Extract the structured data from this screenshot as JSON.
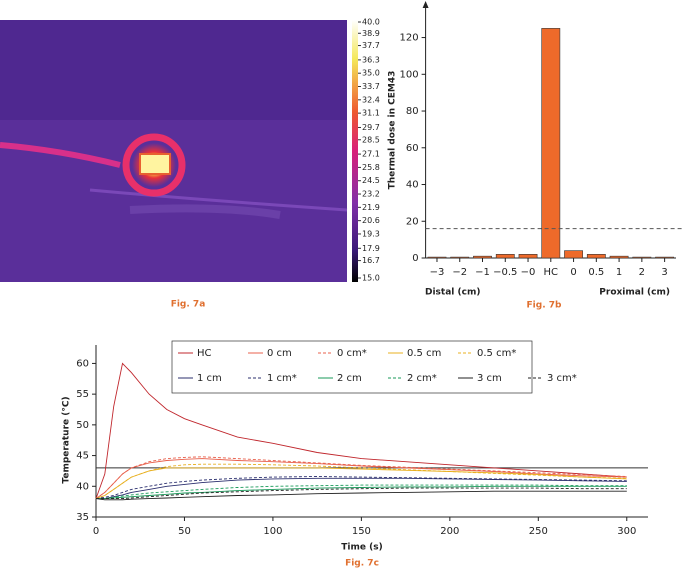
{
  "chart_data": [
    {
      "type": "thermal-image",
      "caption": "Fig. 7a",
      "clim": [
        15,
        40
      ],
      "colorbar_ticks": [
        {
          "value": 40,
          "label": "40.0"
        },
        38.9,
        37.7,
        36.3,
        {
          "value": 35,
          "label": "35.0"
        },
        33.7,
        32.4,
        31.1,
        29.7,
        28.5,
        27.1,
        25.8,
        24.5,
        23.2,
        21.9,
        20.6,
        19.3,
        17.9,
        16.7,
        {
          "value": 15,
          "label": "15.0"
        }
      ]
    },
    {
      "type": "bar",
      "caption": "Fig. 7b",
      "y_label": "Thermal dose in CEM43",
      "x_label_left": "Distal (cm)",
      "x_label_right": "Proximal (cm)",
      "categories": [
        "−3",
        "−2",
        "−1",
        "−0.5",
        "−0",
        "HC",
        "0",
        "0.5",
        "1",
        "2",
        "3"
      ],
      "values": [
        0.5,
        0.5,
        1,
        2,
        2,
        125,
        4,
        2,
        1,
        0.5,
        0.5
      ],
      "color": "#ee6a2a",
      "ylim": [
        0,
        135
      ],
      "yticks": [
        0,
        20,
        40,
        60,
        80,
        100,
        120
      ],
      "reference_line": 16
    },
    {
      "type": "line",
      "caption": "Fig. 7c",
      "x_label": "Time (s)",
      "y_label": "Temperature (°C)",
      "x": [
        0,
        5,
        10,
        15,
        20,
        30,
        40,
        50,
        60,
        80,
        100,
        125,
        150,
        175,
        200,
        225,
        250,
        275,
        300
      ],
      "xlim": [
        0,
        312
      ],
      "xticks": [
        0,
        50,
        100,
        150,
        200,
        250,
        300
      ],
      "ylim": [
        35,
        63
      ],
      "yticks": [
        35,
        40,
        45,
        50,
        55,
        60
      ],
      "reference_line": 43,
      "series": [
        {
          "name": "HC",
          "color": "#c0272d",
          "dashed": false,
          "values": [
            38,
            42,
            53,
            60,
            58.5,
            55,
            52.5,
            51,
            50,
            48,
            47,
            45.5,
            44.5,
            44,
            43.5,
            43,
            42.5,
            42,
            41.5
          ]
        },
        {
          "name": "0 cm",
          "color": "#e8604c",
          "dashed": false,
          "values": [
            38,
            39,
            40.5,
            42,
            43,
            43.8,
            44.2,
            44.4,
            44.5,
            44.2,
            44,
            43.7,
            43.3,
            43,
            42.7,
            42.4,
            42,
            41.7,
            41.5
          ]
        },
        {
          "name": "0 cm*",
          "color": "#e8604c",
          "dashed": true,
          "values": [
            38,
            39,
            40.5,
            42,
            43,
            44,
            44.5,
            44.7,
            44.8,
            44.5,
            44.2,
            43.8,
            43.4,
            43.1,
            42.8,
            42.5,
            42.2,
            41.9,
            41.6
          ]
        },
        {
          "name": "0.5 cm",
          "color": "#e8b020",
          "dashed": false,
          "values": [
            38,
            38.5,
            39.5,
            40.5,
            41.5,
            42.5,
            43,
            43,
            43,
            43,
            43,
            43,
            42.8,
            42.6,
            42.4,
            42.2,
            41.9,
            41.5,
            41.2
          ]
        },
        {
          "name": "0.5 cm*",
          "color": "#e8b020",
          "dashed": true,
          "values": [
            38,
            38.5,
            39.5,
            40.5,
            41.5,
            42.5,
            43.2,
            43.5,
            43.6,
            43.6,
            43.5,
            43.3,
            43,
            42.7,
            42.4,
            42.1,
            41.8,
            41.5,
            41.3
          ]
        },
        {
          "name": "1 cm",
          "color": "#2b2f6e",
          "dashed": false,
          "values": [
            38,
            38,
            38.3,
            38.6,
            39,
            39.5,
            40,
            40.3,
            40.6,
            41,
            41.2,
            41.3,
            41.3,
            41.3,
            41.2,
            41.1,
            41,
            40.9,
            40.8
          ]
        },
        {
          "name": "1 cm*",
          "color": "#2b2f6e",
          "dashed": true,
          "values": [
            38,
            38.2,
            38.5,
            39,
            39.5,
            40,
            40.5,
            40.8,
            41,
            41.3,
            41.5,
            41.6,
            41.5,
            41.4,
            41.3,
            41.2,
            41.1,
            41,
            40.9
          ]
        },
        {
          "name": "2 cm",
          "color": "#1a9a5a",
          "dashed": false,
          "values": [
            38,
            38,
            38.1,
            38.2,
            38.3,
            38.5,
            38.7,
            38.9,
            39,
            39.3,
            39.5,
            39.7,
            39.8,
            39.9,
            39.9,
            40,
            40,
            40,
            40
          ]
        },
        {
          "name": "2 cm*",
          "color": "#1a9a5a",
          "dashed": true,
          "values": [
            38,
            38,
            38.2,
            38.4,
            38.6,
            38.9,
            39.1,
            39.3,
            39.5,
            39.8,
            40,
            40.1,
            40.2,
            40.2,
            40.2,
            40.2,
            40.2,
            40.1,
            40.1
          ]
        },
        {
          "name": "3 cm",
          "color": "#222222",
          "dashed": false,
          "values": [
            38,
            37.8,
            37.8,
            37.8,
            37.9,
            38,
            38.1,
            38.2,
            38.3,
            38.5,
            38.6,
            38.8,
            38.9,
            39,
            39.1,
            39.2,
            39.2,
            39.2,
            39.2
          ]
        },
        {
          "name": "3 cm*",
          "color": "#222222",
          "dashed": true,
          "values": [
            38,
            38,
            38,
            38,
            38.1,
            38.3,
            38.5,
            38.7,
            38.9,
            39.1,
            39.3,
            39.5,
            39.6,
            39.7,
            39.7,
            39.7,
            39.7,
            39.6,
            39.6
          ]
        }
      ]
    }
  ]
}
